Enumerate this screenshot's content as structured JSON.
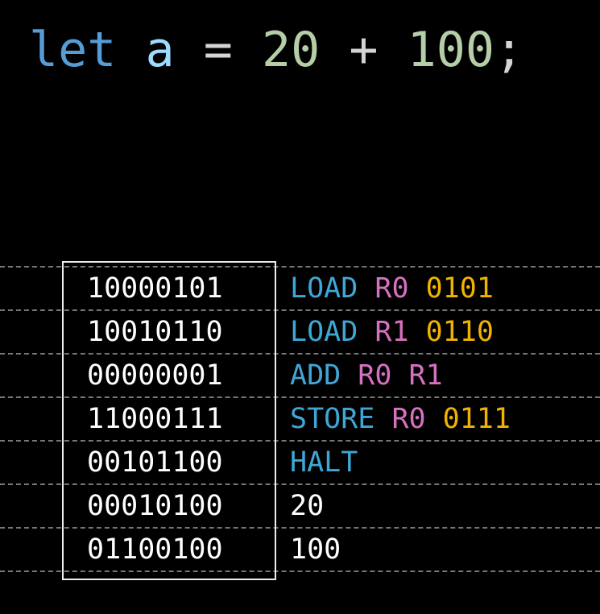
{
  "code": {
    "keyword": "let",
    "variable": "a",
    "assign": "=",
    "left": "20",
    "plus": "+",
    "right": "100",
    "semicolon": ";"
  },
  "colors": {
    "keyword": "#569cd6",
    "variable": "#9cdcfe",
    "number": "#b5cea8",
    "opcode": "#3fa7d6",
    "register": "#d670c0",
    "address": "#f0b400"
  },
  "rows": [
    {
      "binary": "10000101",
      "op": "LOAD",
      "reg1": "R0",
      "reg2": "",
      "addr": "0101",
      "value": ""
    },
    {
      "binary": "10010110",
      "op": "LOAD",
      "reg1": "R1",
      "reg2": "",
      "addr": "0110",
      "value": ""
    },
    {
      "binary": "00000001",
      "op": "ADD",
      "reg1": "R0",
      "reg2": "R1",
      "addr": "",
      "value": ""
    },
    {
      "binary": "11000111",
      "op": "STORE",
      "reg1": "R0",
      "reg2": "",
      "addr": "0111",
      "value": ""
    },
    {
      "binary": "00101100",
      "op": "HALT",
      "reg1": "",
      "reg2": "",
      "addr": "",
      "value": ""
    },
    {
      "binary": "00010100",
      "op": "",
      "reg1": "",
      "reg2": "",
      "addr": "",
      "value": "20"
    },
    {
      "binary": "01100100",
      "op": "",
      "reg1": "",
      "reg2": "",
      "addr": "",
      "value": "100"
    }
  ]
}
